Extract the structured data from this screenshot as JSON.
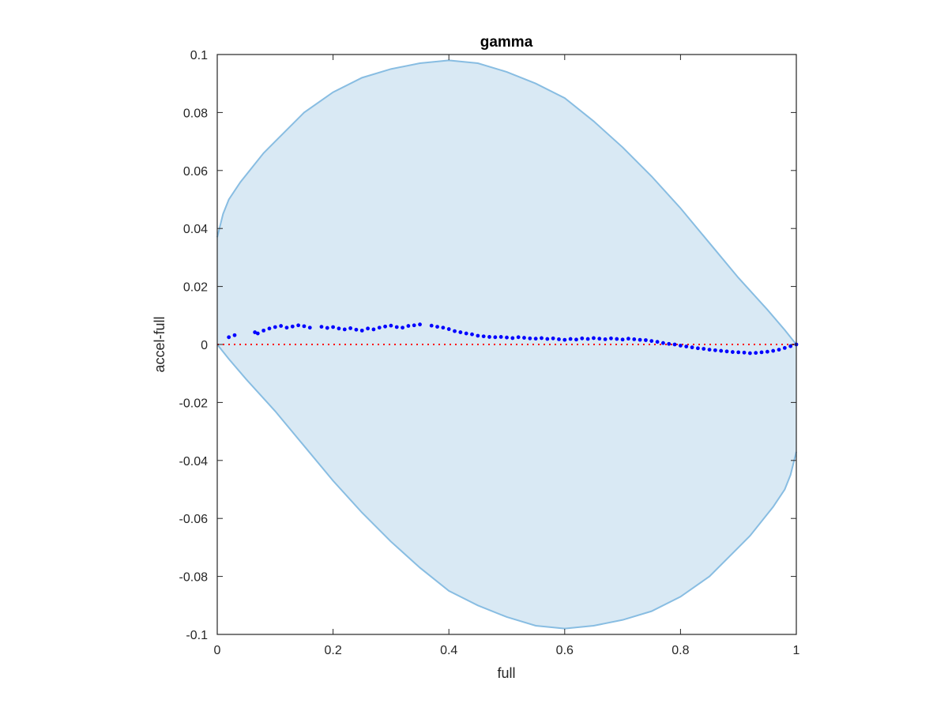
{
  "chart_data": {
    "type": "scatter",
    "title": "gamma",
    "xlabel": "full",
    "ylabel": "accel-full",
    "xlim": [
      0,
      1
    ],
    "ylim": [
      -0.1,
      0.1
    ],
    "x_ticks": [
      0,
      0.2,
      0.4,
      0.6,
      0.8,
      1
    ],
    "x_tick_labels": [
      "0",
      "0.2",
      "0.4",
      "0.6",
      "0.8",
      "1"
    ],
    "y_ticks": [
      -0.1,
      -0.08,
      -0.06,
      -0.04,
      -0.02,
      0,
      0.02,
      0.04,
      0.06,
      0.08,
      0.1
    ],
    "y_tick_labels": [
      "-0.1",
      "-0.08",
      "-0.06",
      "-0.04",
      "-0.02",
      "0",
      "0.02",
      "0.04",
      "0.06",
      "0.08",
      "0.1"
    ],
    "grid": false,
    "band": {
      "upper": [
        [
          0,
          0.037
        ],
        [
          0.01,
          0.045
        ],
        [
          0.02,
          0.05
        ],
        [
          0.04,
          0.056
        ],
        [
          0.06,
          0.061
        ],
        [
          0.08,
          0.066
        ],
        [
          0.1,
          0.07
        ],
        [
          0.15,
          0.08
        ],
        [
          0.2,
          0.087
        ],
        [
          0.25,
          0.092
        ],
        [
          0.3,
          0.095
        ],
        [
          0.35,
          0.097
        ],
        [
          0.4,
          0.098
        ],
        [
          0.45,
          0.097
        ],
        [
          0.5,
          0.094
        ],
        [
          0.55,
          0.09
        ],
        [
          0.6,
          0.085
        ],
        [
          0.65,
          0.077
        ],
        [
          0.7,
          0.068
        ],
        [
          0.75,
          0.058
        ],
        [
          0.8,
          0.047
        ],
        [
          0.85,
          0.035
        ],
        [
          0.9,
          0.023
        ],
        [
          0.95,
          0.012
        ],
        [
          0.98,
          0.005
        ],
        [
          1,
          0
        ]
      ],
      "lower": [
        [
          0,
          0
        ],
        [
          0.02,
          -0.005
        ],
        [
          0.05,
          -0.012
        ],
        [
          0.1,
          -0.023
        ],
        [
          0.15,
          -0.035
        ],
        [
          0.2,
          -0.047
        ],
        [
          0.25,
          -0.058
        ],
        [
          0.3,
          -0.068
        ],
        [
          0.35,
          -0.077
        ],
        [
          0.4,
          -0.085
        ],
        [
          0.45,
          -0.09
        ],
        [
          0.5,
          -0.094
        ],
        [
          0.55,
          -0.097
        ],
        [
          0.6,
          -0.098
        ],
        [
          0.65,
          -0.097
        ],
        [
          0.7,
          -0.095
        ],
        [
          0.75,
          -0.092
        ],
        [
          0.8,
          -0.087
        ],
        [
          0.85,
          -0.08
        ],
        [
          0.9,
          -0.07
        ],
        [
          0.92,
          -0.066
        ],
        [
          0.94,
          -0.061
        ],
        [
          0.96,
          -0.056
        ],
        [
          0.98,
          -0.05
        ],
        [
          0.99,
          -0.045
        ],
        [
          1,
          -0.037
        ]
      ],
      "fill": "#d9e9f4",
      "edge": "#88bde2"
    },
    "reference_line": {
      "y": 0,
      "color": "#ff0000",
      "style": "dotted"
    },
    "points_color": "#0000ff",
    "points": [
      [
        0.02,
        0.0025
      ],
      [
        0.03,
        0.0032
      ],
      [
        0.065,
        0.0042
      ],
      [
        0.07,
        0.0038
      ],
      [
        0.08,
        0.0048
      ],
      [
        0.09,
        0.0055
      ],
      [
        0.1,
        0.006
      ],
      [
        0.11,
        0.0064
      ],
      [
        0.12,
        0.0058
      ],
      [
        0.13,
        0.0062
      ],
      [
        0.14,
        0.0066
      ],
      [
        0.15,
        0.0063
      ],
      [
        0.16,
        0.0058
      ],
      [
        0.18,
        0.0061
      ],
      [
        0.19,
        0.0057
      ],
      [
        0.2,
        0.006
      ],
      [
        0.21,
        0.0055
      ],
      [
        0.22,
        0.0052
      ],
      [
        0.23,
        0.0056
      ],
      [
        0.24,
        0.0051
      ],
      [
        0.25,
        0.0048
      ],
      [
        0.26,
        0.0055
      ],
      [
        0.27,
        0.0052
      ],
      [
        0.28,
        0.0058
      ],
      [
        0.29,
        0.0062
      ],
      [
        0.3,
        0.0065
      ],
      [
        0.31,
        0.006
      ],
      [
        0.32,
        0.0058
      ],
      [
        0.33,
        0.0064
      ],
      [
        0.34,
        0.0066
      ],
      [
        0.35,
        0.0069
      ],
      [
        0.37,
        0.0065
      ],
      [
        0.38,
        0.0061
      ],
      [
        0.39,
        0.0058
      ],
      [
        0.4,
        0.0053
      ],
      [
        0.41,
        0.0046
      ],
      [
        0.42,
        0.0042
      ],
      [
        0.43,
        0.0038
      ],
      [
        0.44,
        0.0035
      ],
      [
        0.45,
        0.003
      ],
      [
        0.46,
        0.0028
      ],
      [
        0.47,
        0.0026
      ],
      [
        0.48,
        0.0025
      ],
      [
        0.49,
        0.0026
      ],
      [
        0.5,
        0.0024
      ],
      [
        0.51,
        0.0022
      ],
      [
        0.52,
        0.0025
      ],
      [
        0.53,
        0.0023
      ],
      [
        0.54,
        0.0021
      ],
      [
        0.55,
        0.002
      ],
      [
        0.56,
        0.0022
      ],
      [
        0.57,
        0.0019
      ],
      [
        0.58,
        0.0021
      ],
      [
        0.59,
        0.0018
      ],
      [
        0.6,
        0.0016
      ],
      [
        0.61,
        0.0019
      ],
      [
        0.62,
        0.0017
      ],
      [
        0.63,
        0.0021
      ],
      [
        0.64,
        0.0019
      ],
      [
        0.65,
        0.0022
      ],
      [
        0.66,
        0.002
      ],
      [
        0.67,
        0.0018
      ],
      [
        0.68,
        0.0021
      ],
      [
        0.69,
        0.0019
      ],
      [
        0.7,
        0.0017
      ],
      [
        0.71,
        0.002
      ],
      [
        0.72,
        0.0018
      ],
      [
        0.73,
        0.0016
      ],
      [
        0.74,
        0.0015
      ],
      [
        0.75,
        0.0012
      ],
      [
        0.76,
        0.0009
      ],
      [
        0.77,
        0.0005
      ],
      [
        0.78,
        0.0002
      ],
      [
        0.79,
        0
      ],
      [
        0.8,
        -0.0004
      ],
      [
        0.81,
        -0.0007
      ],
      [
        0.82,
        -0.001
      ],
      [
        0.83,
        -0.0013
      ],
      [
        0.84,
        -0.0015
      ],
      [
        0.85,
        -0.0018
      ],
      [
        0.86,
        -0.002
      ],
      [
        0.87,
        -0.0022
      ],
      [
        0.88,
        -0.0024
      ],
      [
        0.89,
        -0.0026
      ],
      [
        0.9,
        -0.0027
      ],
      [
        0.91,
        -0.0028
      ],
      [
        0.92,
        -0.003
      ],
      [
        0.93,
        -0.0029
      ],
      [
        0.94,
        -0.0027
      ],
      [
        0.95,
        -0.0025
      ],
      [
        0.96,
        -0.0022
      ],
      [
        0.97,
        -0.0018
      ],
      [
        0.98,
        -0.0012
      ],
      [
        0.99,
        -0.0006
      ],
      [
        1,
        0
      ]
    ]
  }
}
